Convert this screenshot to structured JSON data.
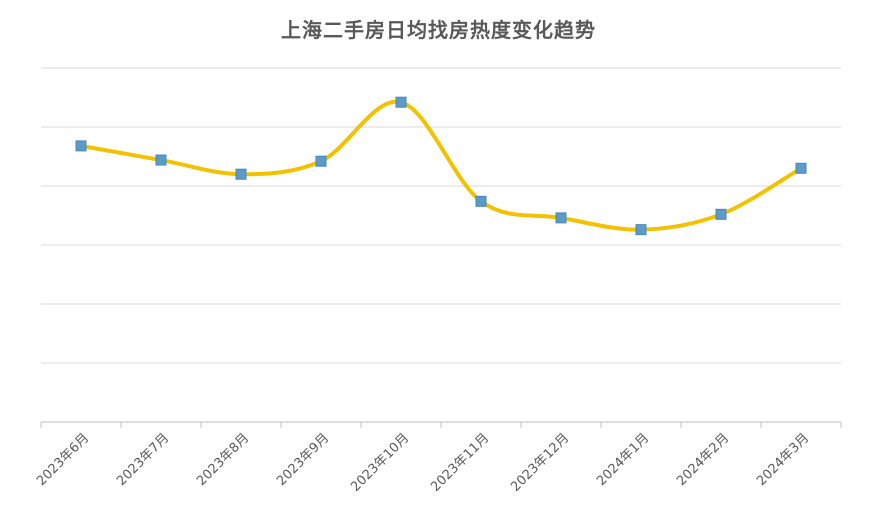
{
  "chart_data": {
    "type": "line",
    "title": "上海二手房日均找房热度变化趋势",
    "xlabel": "",
    "ylabel": "",
    "categories": [
      "2023年6月",
      "2023年7月",
      "2023年8月",
      "2023年9月",
      "2023年10月",
      "2023年11月",
      "2023年12月",
      "2024年1月",
      "2024年2月",
      "2024年3月"
    ],
    "series": [
      {
        "values": [
          4.68,
          4.44,
          4.2,
          4.42,
          5.42,
          3.74,
          3.46,
          3.26,
          3.52,
          4.3
        ],
        "color": "#F2C200",
        "marker_color": "#5B9BC7",
        "marker": "square",
        "smooth": true
      }
    ],
    "ylim": [
      0,
      6
    ],
    "y_gridlines": 6,
    "y_tick_labels_shown": false,
    "grid": true,
    "legend": "none"
  }
}
